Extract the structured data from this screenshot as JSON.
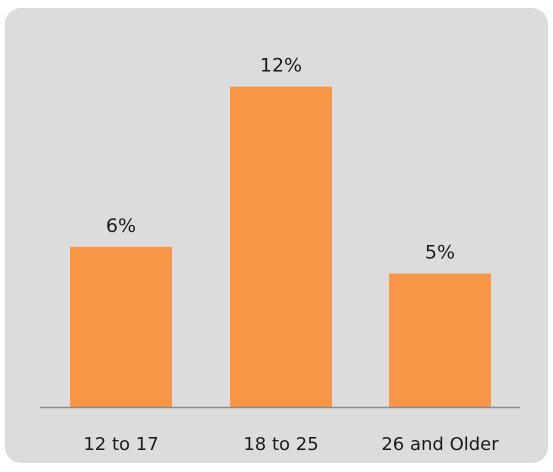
{
  "chart_data": {
    "type": "bar",
    "categories": [
      "12 to 17",
      "18 to 25",
      "26 and Older"
    ],
    "values": [
      6,
      12,
      5
    ],
    "data_labels": [
      "6%",
      "12%",
      "5%"
    ],
    "ylim": [
      0,
      13
    ],
    "grid": false,
    "colors": {
      "bar": "#f79646",
      "axis": "#8c8c8c",
      "background": "#dcdcdc"
    }
  }
}
